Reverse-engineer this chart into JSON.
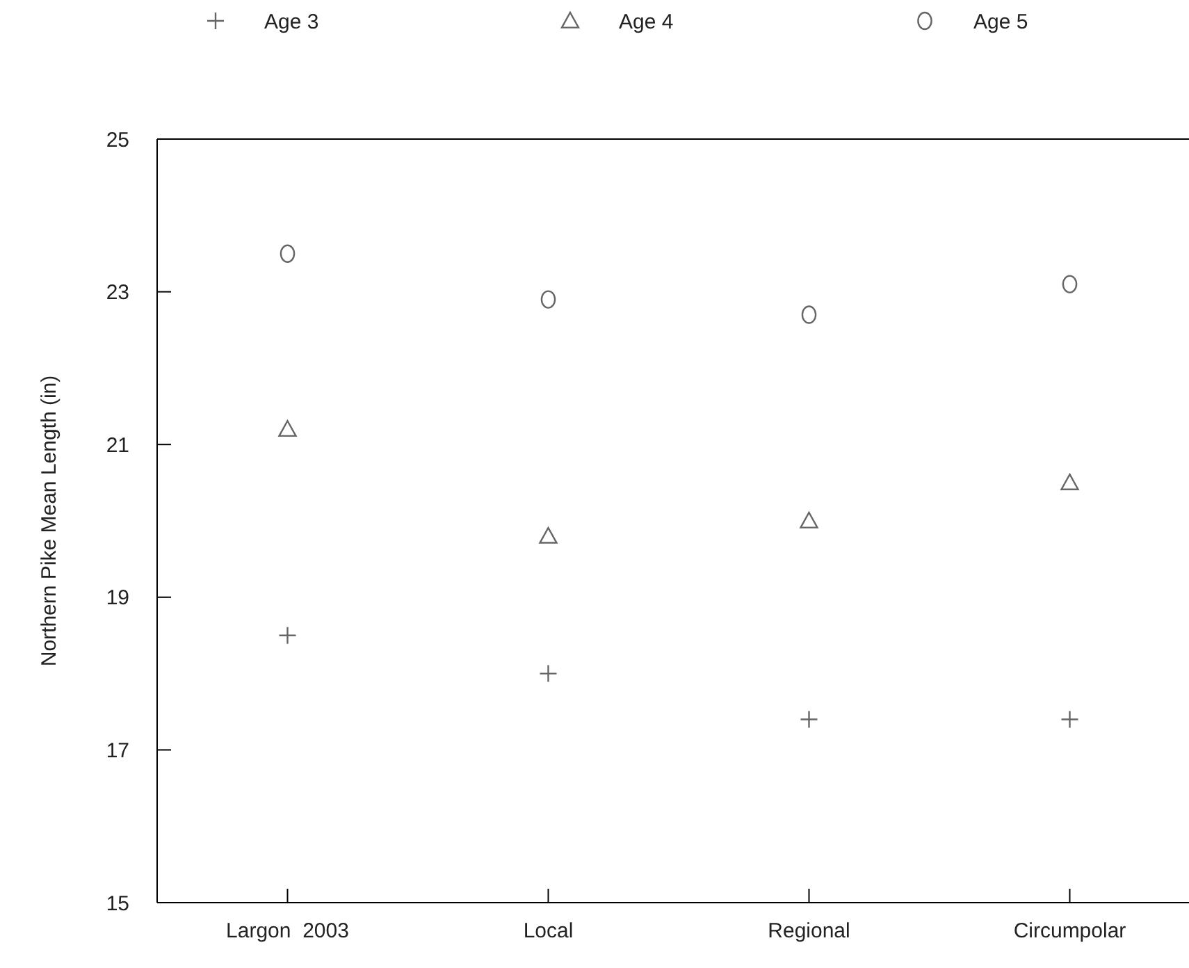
{
  "chart_data": {
    "type": "scatter",
    "ylabel": "Northern Pike Mean Length (in)",
    "categories": [
      "Largon  2003",
      "Local",
      "Regional",
      "Circumpolar"
    ],
    "ylim": [
      15,
      25
    ],
    "yticks": [
      15,
      17,
      19,
      21,
      23,
      25
    ],
    "legend": "top",
    "grid": false,
    "series": [
      {
        "name": "Age 3",
        "color": "#666666",
        "marker": "cross",
        "values": [
          18.5,
          18.0,
          17.4,
          17.4
        ]
      },
      {
        "name": "Age 4",
        "color": "#666666",
        "marker": "triangle",
        "values": [
          21.2,
          19.8,
          20.0,
          20.5
        ]
      },
      {
        "name": "Age 5",
        "color": "#666666",
        "marker": "circle",
        "values": [
          23.5,
          22.9,
          22.7,
          23.1
        ]
      }
    ]
  }
}
